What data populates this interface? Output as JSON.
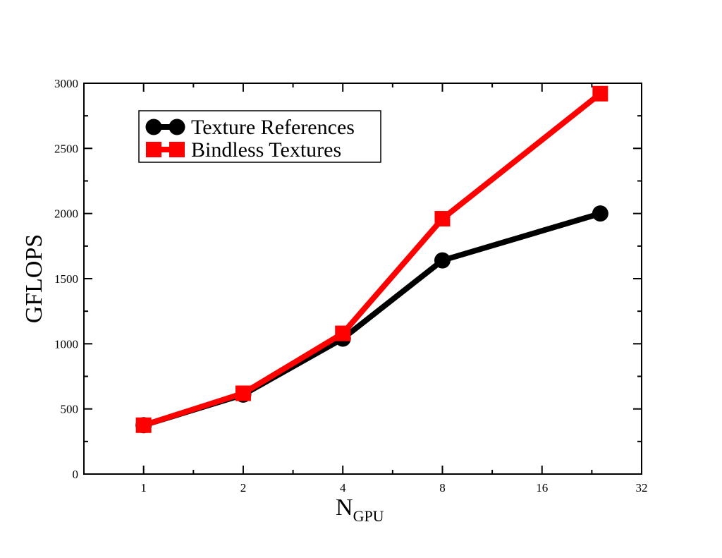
{
  "chart_data": {
    "type": "line",
    "x_scale": "log2",
    "xlabel": "N",
    "xlabel_subscript": "GPU",
    "ylabel": "GFLOPS",
    "xlim": [
      0.66,
      32
    ],
    "ylim": [
      0,
      3000
    ],
    "x_ticks": [
      1,
      2,
      4,
      8,
      16,
      32
    ],
    "x_tick_labels": [
      "1",
      "2",
      "4",
      "8",
      "16",
      "32"
    ],
    "y_ticks": [
      0,
      500,
      1000,
      1500,
      2000,
      2500,
      3000
    ],
    "y_tick_labels": [
      "0",
      "500",
      "1000",
      "1500",
      "2000",
      "2500",
      "3000"
    ],
    "legend_position": "top-left",
    "grid": false,
    "series": [
      {
        "name": "Texture References",
        "color": "#000000",
        "marker": "circle",
        "x": [
          1,
          2,
          4,
          8,
          24
        ],
        "y": [
          375,
          610,
          1040,
          1640,
          2000
        ]
      },
      {
        "name": "Bindless Textures",
        "color": "#ff0000",
        "marker": "square",
        "x": [
          1,
          2,
          4,
          8,
          24
        ],
        "y": [
          375,
          620,
          1080,
          1960,
          2920
        ]
      }
    ]
  }
}
